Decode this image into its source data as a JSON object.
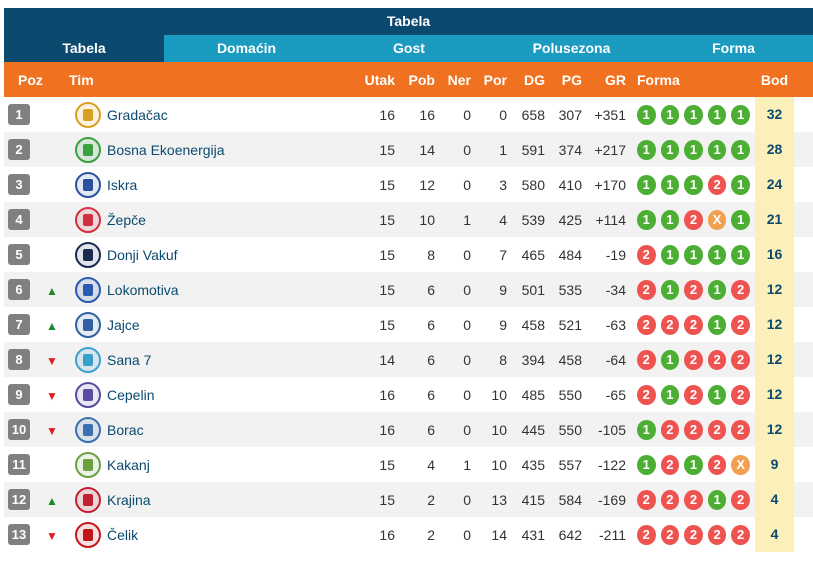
{
  "title": "Tabela",
  "tabs": [
    "Tabela",
    "Domaćin",
    "Gost",
    "Polusezona",
    "Forma"
  ],
  "active_tab": 0,
  "headers": {
    "poz": "Poz",
    "tim": "Tim",
    "utak": "Utak",
    "pob": "Pob",
    "ner": "Ner",
    "por": "Por",
    "dg": "DG",
    "pg": "PG",
    "gr": "GR",
    "forma": "Forma",
    "bod": "Bod"
  },
  "colors": {
    "win": "#4caf34",
    "loss": "#ef5350",
    "draw": "#f0a050",
    "header": "#f07220",
    "title": "#0b4a6e",
    "tabs": "#1a9bbf"
  },
  "rows": [
    {
      "poz": "1",
      "mv": "",
      "team": "Gradačac",
      "logo": "#d8a020",
      "ut": "16",
      "pob": "16",
      "ner": "0",
      "por": "0",
      "dg": "658",
      "pg": "307",
      "gr": "+351",
      "forma": [
        "1",
        "1",
        "1",
        "1",
        "1"
      ],
      "bod": "32"
    },
    {
      "poz": "2",
      "mv": "",
      "team": "Bosna Ekoenergija",
      "logo": "#3aa040",
      "ut": "15",
      "pob": "14",
      "ner": "0",
      "por": "1",
      "dg": "591",
      "pg": "374",
      "gr": "+217",
      "forma": [
        "1",
        "1",
        "1",
        "1",
        "1"
      ],
      "bod": "28"
    },
    {
      "poz": "3",
      "mv": "",
      "team": "Iskra",
      "logo": "#2a50a0",
      "ut": "15",
      "pob": "12",
      "ner": "0",
      "por": "3",
      "dg": "580",
      "pg": "410",
      "gr": "+170",
      "forma": [
        "1",
        "1",
        "1",
        "2",
        "1"
      ],
      "bod": "24"
    },
    {
      "poz": "4",
      "mv": "",
      "team": "Žepče",
      "logo": "#d03040",
      "ut": "15",
      "pob": "10",
      "ner": "1",
      "por": "4",
      "dg": "539",
      "pg": "425",
      "gr": "+114",
      "forma": [
        "1",
        "1",
        "2",
        "X",
        "1"
      ],
      "bod": "21"
    },
    {
      "poz": "5",
      "mv": "",
      "team": "Donji Vakuf",
      "logo": "#1a2a50",
      "ut": "15",
      "pob": "8",
      "ner": "0",
      "por": "7",
      "dg": "465",
      "pg": "484",
      "gr": "-19",
      "forma": [
        "2",
        "1",
        "1",
        "1",
        "1"
      ],
      "bod": "16"
    },
    {
      "poz": "6",
      "mv": "up",
      "team": "Lokomotiva",
      "logo": "#2a5ab0",
      "ut": "15",
      "pob": "6",
      "ner": "0",
      "por": "9",
      "dg": "501",
      "pg": "535",
      "gr": "-34",
      "forma": [
        "2",
        "1",
        "2",
        "1",
        "2"
      ],
      "bod": "12"
    },
    {
      "poz": "7",
      "mv": "up",
      "team": "Jajce",
      "logo": "#3060a0",
      "ut": "15",
      "pob": "6",
      "ner": "0",
      "por": "9",
      "dg": "458",
      "pg": "521",
      "gr": "-63",
      "forma": [
        "2",
        "2",
        "2",
        "1",
        "2"
      ],
      "bod": "12"
    },
    {
      "poz": "8",
      "mv": "down",
      "team": "Sana 7",
      "logo": "#3aa0d0",
      "ut": "14",
      "pob": "6",
      "ner": "0",
      "por": "8",
      "dg": "394",
      "pg": "458",
      "gr": "-64",
      "forma": [
        "2",
        "1",
        "2",
        "2",
        "2"
      ],
      "bod": "12"
    },
    {
      "poz": "9",
      "mv": "down",
      "team": "Cepelin",
      "logo": "#5a4aa0",
      "ut": "16",
      "pob": "6",
      "ner": "0",
      "por": "10",
      "dg": "485",
      "pg": "550",
      "gr": "-65",
      "forma": [
        "2",
        "1",
        "2",
        "1",
        "2"
      ],
      "bod": "12"
    },
    {
      "poz": "10",
      "mv": "down",
      "team": "Borac",
      "logo": "#3a70b0",
      "ut": "16",
      "pob": "6",
      "ner": "0",
      "por": "10",
      "dg": "445",
      "pg": "550",
      "gr": "-105",
      "forma": [
        "1",
        "2",
        "2",
        "2",
        "2"
      ],
      "bod": "12"
    },
    {
      "poz": "11",
      "mv": "",
      "team": "Kakanj",
      "logo": "#6aa040",
      "ut": "15",
      "pob": "4",
      "ner": "1",
      "por": "10",
      "dg": "435",
      "pg": "557",
      "gr": "-122",
      "forma": [
        "1",
        "2",
        "1",
        "2",
        "X"
      ],
      "bod": "9"
    },
    {
      "poz": "12",
      "mv": "up",
      "team": "Krajina",
      "logo": "#c02030",
      "ut": "15",
      "pob": "2",
      "ner": "0",
      "por": "13",
      "dg": "415",
      "pg": "584",
      "gr": "-169",
      "forma": [
        "2",
        "2",
        "2",
        "1",
        "2"
      ],
      "bod": "4"
    },
    {
      "poz": "13",
      "mv": "down",
      "team": "Čelik",
      "logo": "#c01818",
      "ut": "16",
      "pob": "2",
      "ner": "0",
      "por": "14",
      "dg": "431",
      "pg": "642",
      "gr": "-211",
      "forma": [
        "2",
        "2",
        "2",
        "2",
        "2"
      ],
      "bod": "4"
    }
  ]
}
